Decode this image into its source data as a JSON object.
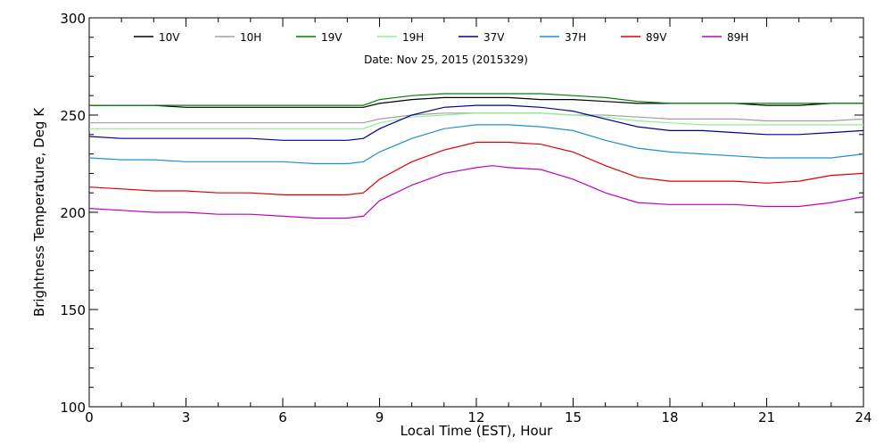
{
  "chart_data": {
    "type": "line",
    "subtitle": "Date: Nov 25, 2015 (2015329)",
    "xlabel": "Local Time (EST), Hour",
    "ylabel": "Brightness Temperature, Deg K",
    "xlim": [
      0,
      24
    ],
    "ylim": [
      100,
      300
    ],
    "xticks": [
      0,
      3,
      6,
      9,
      12,
      15,
      18,
      21,
      24
    ],
    "yticks": [
      100,
      150,
      200,
      250,
      300
    ],
    "grid": false,
    "legend_position": "top",
    "x": [
      0,
      1,
      2,
      3,
      4,
      5,
      6,
      7,
      7.5,
      8,
      8.5,
      9,
      10,
      11,
      12,
      12.5,
      13,
      14,
      15,
      16,
      17,
      18,
      19,
      20,
      21,
      22,
      23,
      24
    ],
    "series": [
      {
        "name": "10V",
        "color": "#000000",
        "values": [
          255,
          255,
          255,
          254,
          254,
          254,
          254,
          254,
          254,
          254,
          254,
          256,
          258,
          259,
          259,
          259,
          259,
          258,
          258,
          257,
          256,
          256,
          256,
          256,
          255,
          255,
          256,
          256
        ]
      },
      {
        "name": "10H",
        "color": "#a0a0a0",
        "values": [
          246,
          246,
          246,
          246,
          246,
          246,
          246,
          246,
          246,
          246,
          246,
          248,
          250,
          251,
          251,
          251,
          251,
          251,
          250,
          250,
          249,
          248,
          248,
          248,
          247,
          247,
          247,
          248
        ]
      },
      {
        "name": "19V",
        "color": "#008000",
        "values": [
          255,
          255,
          255,
          255,
          255,
          255,
          255,
          255,
          255,
          255,
          255,
          258,
          260,
          261,
          261,
          261,
          261,
          261,
          260,
          259,
          257,
          256,
          256,
          256,
          256,
          256,
          256,
          256
        ]
      },
      {
        "name": "19H",
        "color": "#90ee90",
        "values": [
          243,
          243,
          243,
          243,
          243,
          243,
          243,
          243,
          243,
          243,
          243,
          246,
          249,
          250,
          251,
          251,
          251,
          251,
          250,
          249,
          247,
          246,
          245,
          245,
          245,
          245,
          245,
          245
        ]
      },
      {
        "name": "37V",
        "color": "#000090",
        "values": [
          239,
          238,
          238,
          238,
          238,
          238,
          237,
          237,
          237,
          237,
          238,
          243,
          250,
          254,
          255,
          255,
          255,
          254,
          252,
          248,
          244,
          242,
          242,
          241,
          240,
          240,
          241,
          242
        ]
      },
      {
        "name": "37H",
        "color": "#1e90d0",
        "values": [
          228,
          227,
          227,
          226,
          226,
          226,
          226,
          225,
          225,
          225,
          226,
          231,
          238,
          243,
          245,
          245,
          245,
          244,
          242,
          237,
          233,
          231,
          230,
          229,
          228,
          228,
          228,
          230
        ]
      },
      {
        "name": "89V",
        "color": "#e00000",
        "values": [
          213,
          212,
          211,
          211,
          210,
          210,
          209,
          209,
          209,
          209,
          210,
          217,
          226,
          232,
          236,
          236,
          236,
          235,
          231,
          224,
          218,
          216,
          216,
          216,
          215,
          216,
          219,
          220
        ]
      },
      {
        "name": "89H",
        "color": "#c000c0",
        "values": [
          202,
          201,
          200,
          200,
          199,
          199,
          198,
          197,
          197,
          197,
          198,
          206,
          214,
          220,
          223,
          224,
          223,
          222,
          217,
          210,
          205,
          204,
          204,
          204,
          203,
          203,
          205,
          208
        ]
      }
    ]
  }
}
